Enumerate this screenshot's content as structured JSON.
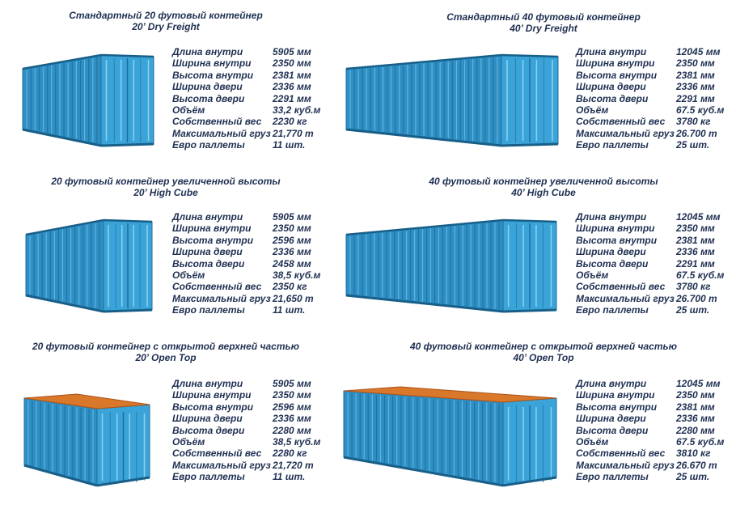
{
  "colors": {
    "text": "#1f3052",
    "container_side": "#2f8fc4",
    "container_end": "#3aa4d8",
    "open_top": "#d9772a"
  },
  "containers": [
    {
      "title": "Стандартный 20 футовый контейнер",
      "subtitle": "20’ Dry Freight",
      "type": "dry",
      "specs": [
        [
          "Длина внутри",
          "5905 мм"
        ],
        [
          "Ширина внутри",
          "2350 мм"
        ],
        [
          "Высота внутри",
          "2381 мм"
        ],
        [
          "Ширина двери",
          "2336 мм"
        ],
        [
          "Высота двери",
          "2291 мм"
        ],
        [
          "Объём",
          "33,2 куб.м"
        ],
        [
          "Собственный вес",
          "2230 кг"
        ],
        [
          "Максимальный груз",
          "21,770 т"
        ],
        [
          "Евро паллеты",
          "11 шт."
        ]
      ]
    },
    {
      "title": "Стандартный 40 футовый контейнер",
      "subtitle": "40’ Dry Freight",
      "type": "dry",
      "specs": [
        [
          "Длина внутри",
          "12045 мм"
        ],
        [
          "Ширина внутри",
          "2350 мм"
        ],
        [
          "Высота внутри",
          "2381 мм"
        ],
        [
          "Ширина двери",
          "2336 мм"
        ],
        [
          "Высота двери",
          "2291 мм"
        ],
        [
          "Объём",
          "67.5 куб.м"
        ],
        [
          "Собственный вес",
          "3780 кг"
        ],
        [
          "Максимальный груз",
          "26.700 т"
        ],
        [
          "Евро паллеты",
          "25 шт."
        ]
      ]
    },
    {
      "title": "20 футовый контейнер увеличенной высоты",
      "subtitle": "20’ High Cube",
      "type": "high-cube",
      "specs": [
        [
          "Длина внутри",
          "5905 мм"
        ],
        [
          "Ширина внутри",
          "2350 мм"
        ],
        [
          "Высота внутри",
          "2596 мм"
        ],
        [
          "Ширина двери",
          "2336 мм"
        ],
        [
          "Высота двери",
          "2458 мм"
        ],
        [
          "Объём",
          "38,5 куб.м"
        ],
        [
          "Собственный вес",
          "2350 кг"
        ],
        [
          "Максимальный груз",
          "21,650 т"
        ],
        [
          "Евро паллеты",
          "11 шт."
        ]
      ]
    },
    {
      "title": "40 футовый контейнер увеличенной высоты",
      "subtitle": "40’ High Cube",
      "type": "high-cube",
      "specs": [
        [
          "Длина внутри",
          "12045 мм"
        ],
        [
          "Ширина внутри",
          "2350 мм"
        ],
        [
          "Высота внутри",
          "2381 мм"
        ],
        [
          "Ширина двери",
          "2336 мм"
        ],
        [
          "Высота двери",
          "2291 мм"
        ],
        [
          "Объём",
          "67.5 куб.м"
        ],
        [
          "Собственный вес",
          "3780 кг"
        ],
        [
          "Максимальный груз",
          "26.700 т"
        ],
        [
          "Евро паллеты",
          "25 шт."
        ]
      ]
    },
    {
      "title": "20 футовый контейнер с открытой верхней частью",
      "subtitle": "20’ Open Top",
      "type": "open-top",
      "specs": [
        [
          "Длина внутри",
          "5905 мм"
        ],
        [
          "Ширина внутри",
          "2350 мм"
        ],
        [
          "Высота внутри",
          "2596 мм"
        ],
        [
          "Ширина двери",
          "2336 мм"
        ],
        [
          "Высота двери",
          "2280 мм"
        ],
        [
          "Объём",
          "38,5 куб.м"
        ],
        [
          "Собственный вес",
          "2280 кг"
        ],
        [
          "Максимальный груз",
          "21,720 т"
        ],
        [
          "Евро паллеты",
          "11 шт."
        ]
      ]
    },
    {
      "title": "40 футовый контейнер с открытой верхней частью",
      "subtitle": "40’ Open Top",
      "type": "open-top",
      "specs": [
        [
          "Длина внутри",
          "12045 мм"
        ],
        [
          "Ширина внутри",
          "2350 мм"
        ],
        [
          "Высота внутри",
          "2381 мм"
        ],
        [
          "Ширина двери",
          "2336 мм"
        ],
        [
          "Высота двери",
          "2280 мм"
        ],
        [
          "Объём",
          "67.5 куб.м"
        ],
        [
          "Собственный вес",
          "3810 кг"
        ],
        [
          "Максимальный груз",
          "26.670 т"
        ],
        [
          "Евро паллеты",
          "25 шт."
        ]
      ]
    }
  ]
}
